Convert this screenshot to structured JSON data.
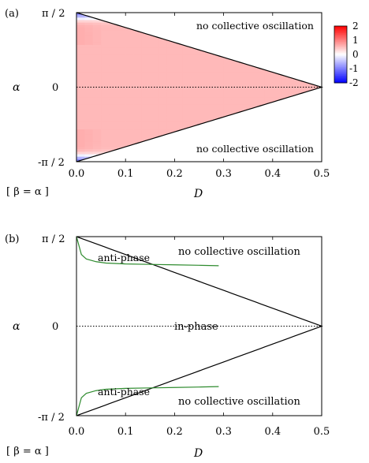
{
  "chart_data": [
    {
      "panel_label": "(a)",
      "type": "heatmap",
      "xlabel": "D",
      "ylabel": "α",
      "constraint_label": "[ β = α ]",
      "xlim": [
        0.0,
        0.5
      ],
      "ylim_labels": [
        "π / 2",
        "0",
        "-π / 2"
      ],
      "x_ticks": [
        "0.0",
        "0.1",
        "0.2",
        "0.3",
        "0.4",
        "0.5"
      ],
      "colorbar_ticks": [
        "2",
        "1",
        "0",
        "-1",
        "-2"
      ],
      "colorbar_range": [
        -2,
        2
      ],
      "annotations": [
        "no collective oscillation",
        "no collective oscillation"
      ],
      "description_of_field": "boundary D = (π/2 - |α|)/π; field positive (red) near α = 0, negative (blue) near |α| ≈ π/2 for small D",
      "zero_line": true
    },
    {
      "panel_label": "(b)",
      "type": "line",
      "xlabel": "D",
      "ylabel": "α",
      "constraint_label": "[ β = α ]",
      "xlim": [
        0.0,
        0.5
      ],
      "ylim_labels": [
        "π / 2",
        "0",
        "-π / 2"
      ],
      "x_ticks": [
        "0.0",
        "0.1",
        "0.2",
        "0.3",
        "0.4",
        "0.5"
      ],
      "annotations": [
        "anti-phase",
        "no collective oscillation",
        "in-phase",
        "anti-phase",
        "no collective oscillation"
      ],
      "series": [
        {
          "color": "#2e8b2e",
          "x": [
            0.0,
            0.01,
            0.02,
            0.04,
            0.06,
            0.1,
            0.15,
            0.2,
            0.25,
            0.29
          ],
          "y_frac_of_half_pi": [
            1.0,
            0.8,
            0.75,
            0.72,
            0.705,
            0.695,
            0.69,
            0.685,
            0.68,
            0.675
          ]
        },
        {
          "color": "#2e8b2e",
          "x": [
            0.0,
            0.01,
            0.02,
            0.04,
            0.06,
            0.1,
            0.15,
            0.2,
            0.25,
            0.29
          ],
          "y_frac_of_half_pi": [
            -1.0,
            -0.8,
            -0.75,
            -0.72,
            -0.705,
            -0.695,
            -0.69,
            -0.685,
            -0.68,
            -0.675
          ]
        }
      ],
      "zero_line": true
    }
  ]
}
